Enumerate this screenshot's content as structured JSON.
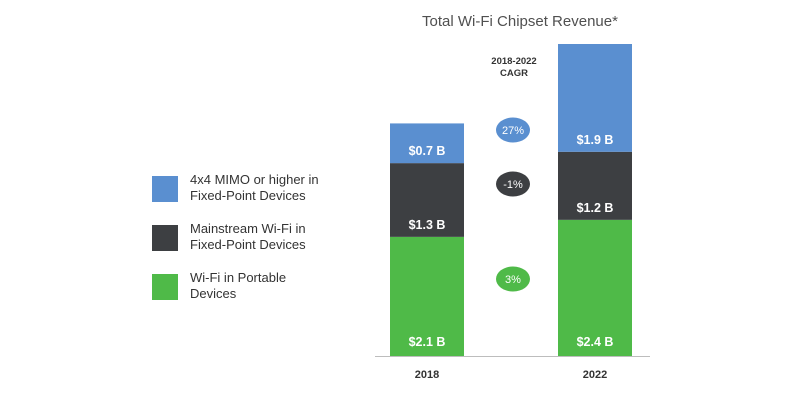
{
  "title": "Total Wi-Fi Chipset Revenue*",
  "legend": [
    {
      "label": "4x4 MIMO or higher in\nFixed-Point Devices",
      "color": "#5a8fd0"
    },
    {
      "label": "Mainstream Wi-Fi in\nFixed-Point Devices",
      "color": "#3d3f42"
    },
    {
      "label": "Wi-Fi in Portable\nDevices",
      "color": "#4fba48"
    }
  ],
  "cagr": {
    "heading_line1": "2018-2022",
    "heading_line2": "CAGR",
    "values": [
      "27%",
      "-1%",
      "3%"
    ],
    "colors": [
      "#5a8fd0",
      "#3d3f42",
      "#4fba48"
    ]
  },
  "chart_data": {
    "type": "bar",
    "stacked": true,
    "title": "Total Wi-Fi Chipset Revenue*",
    "categories": [
      "2018",
      "2022"
    ],
    "series": [
      {
        "name": "Wi-Fi in Portable Devices",
        "values": [
          2.1,
          2.4
        ],
        "labels": [
          "$2.1 B",
          "$2.4 B"
        ],
        "color": "#4fba48"
      },
      {
        "name": "Mainstream Wi-Fi in Fixed-Point Devices",
        "values": [
          1.3,
          1.2
        ],
        "labels": [
          "$1.3 B",
          "$1.2 B"
        ],
        "color": "#3d3f42"
      },
      {
        "name": "4x4 MIMO or higher in Fixed-Point Devices",
        "values": [
          0.7,
          1.9
        ],
        "labels": [
          "$0.7 B",
          "$1.9 B"
        ],
        "color": "#5a8fd0"
      }
    ],
    "ylim": [
      0,
      5.5
    ],
    "xlabel": "",
    "ylabel": "",
    "grid": false,
    "legend_position": "left"
  }
}
